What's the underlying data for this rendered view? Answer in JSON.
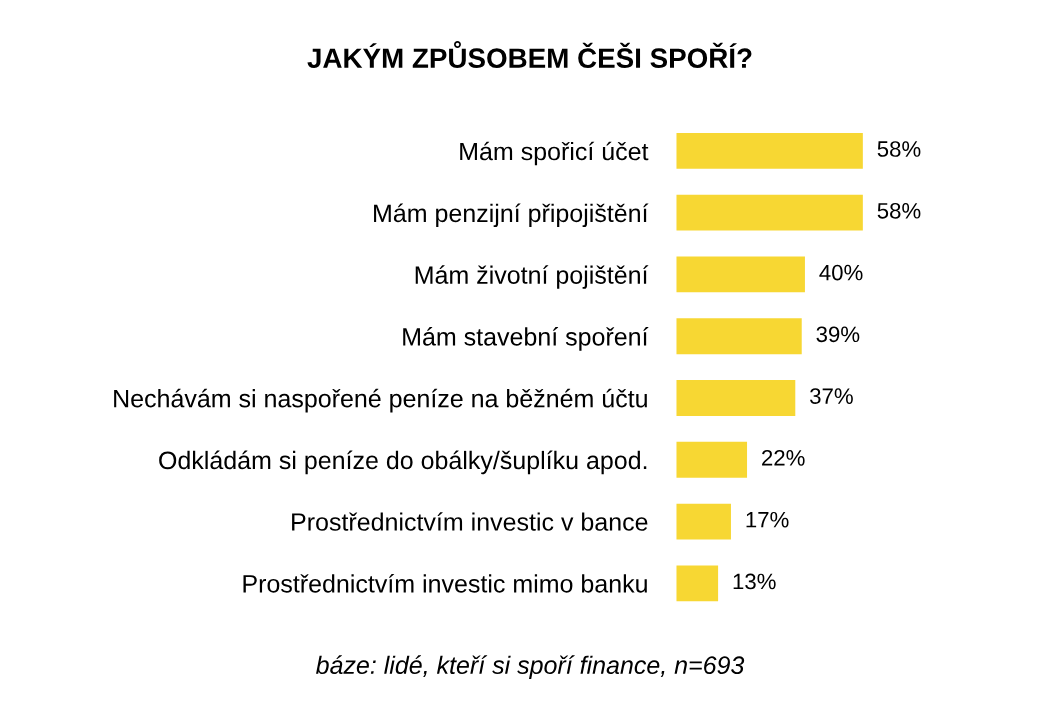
{
  "chart_data": {
    "type": "bar",
    "orientation": "horizontal",
    "title": "JAKÝM ZPŮSOBEM ČEŠI SPOŘÍ?",
    "categories": [
      "Mám spořicí účet",
      "Mám penzijní připojištění",
      "Mám životní pojištění",
      "Mám stavební spoření",
      "Nechávám si naspořené peníze na běžném účtu",
      "Odkládám si peníze do obálky/šuplíku apod.",
      "Prostřednictvím investic v bance",
      "Prostřednictvím investic mimo banku"
    ],
    "values": [
      58,
      58,
      40,
      39,
      37,
      22,
      17,
      13
    ],
    "value_labels": [
      "58%",
      "58%",
      "40%",
      "39%",
      "37%",
      "22%",
      "17%",
      "13%"
    ],
    "color": "#f7d733",
    "tick_labels": "y",
    "grid": false,
    "legend": false,
    "annotations": [
      "báze: lidé, kteří si spoří finance, n=693"
    ]
  }
}
